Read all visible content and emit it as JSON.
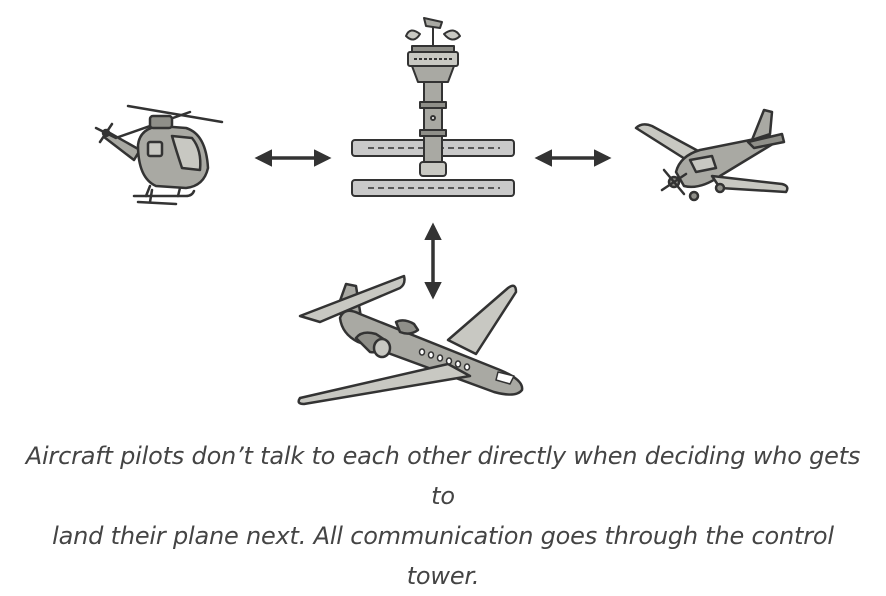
{
  "caption": {
    "line1": "Aircraft pilots don’t talk to each other directly when deciding who gets to",
    "line2": "land their plane next. All communication goes through the control tower."
  },
  "colors": {
    "stroke": "#333333",
    "body": "#a9a9a3",
    "body_light": "#c8c8c2",
    "body_dark": "#8f8f89",
    "runway": "#c9c9c9",
    "caption": "#444444"
  },
  "icons": [
    "helicopter-icon",
    "control-tower-icon",
    "small-plane-icon",
    "airliner-icon",
    "double-arrow-icon"
  ]
}
